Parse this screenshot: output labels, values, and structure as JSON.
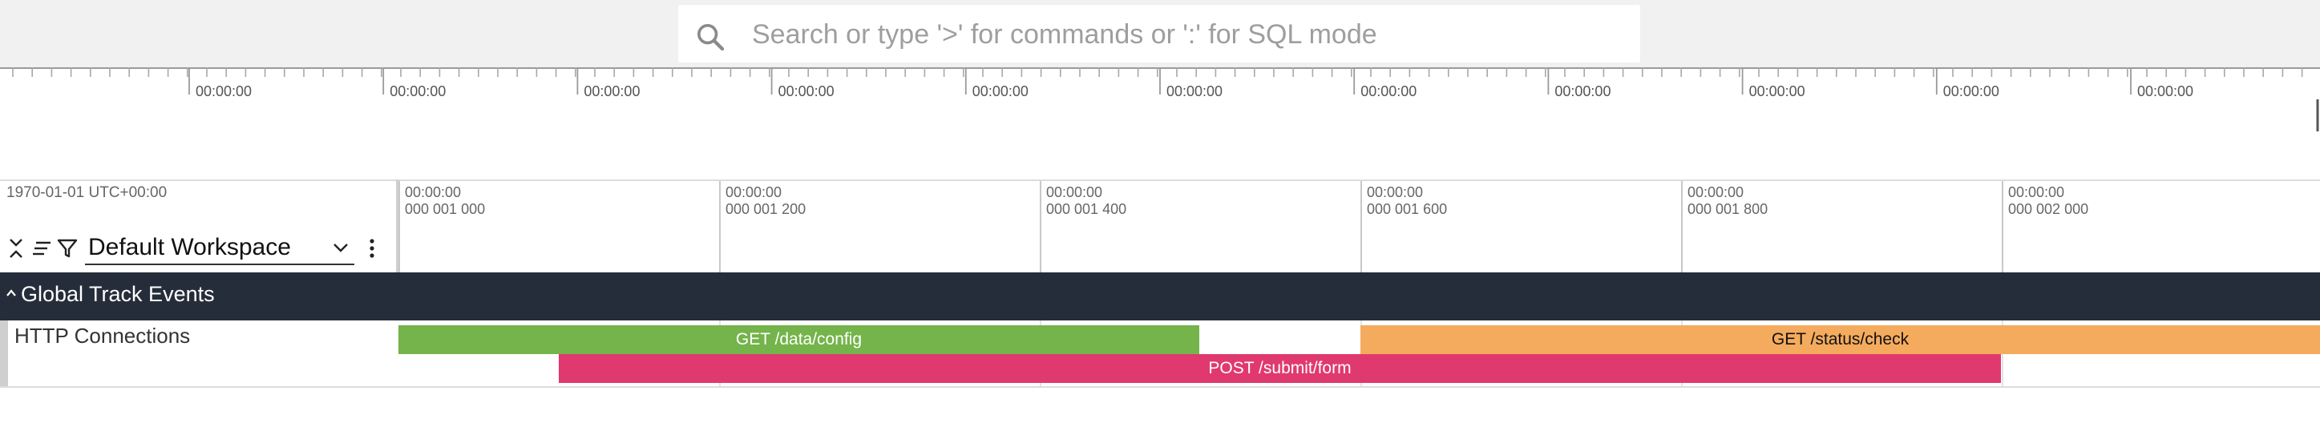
{
  "search": {
    "placeholder": "Search or type '>' for commands or ':' for SQL mode",
    "icon": "search-icon"
  },
  "overview": {
    "labels": [
      "00:00:00",
      "00:00:00",
      "00:00:00",
      "00:00:00",
      "00:00:00",
      "00:00:00",
      "00:00:00",
      "00:00:00",
      "00:00:00",
      "00:00:00",
      "00:00:00"
    ]
  },
  "timeline": {
    "date_label": "1970-01-01 UTC+00:00",
    "ticks": [
      {
        "time": "00:00:00",
        "sub": "000 001 000"
      },
      {
        "time": "00:00:00",
        "sub": "000 001 200"
      },
      {
        "time": "00:00:00",
        "sub": "000 001 400"
      },
      {
        "time": "00:00:00",
        "sub": "000 001 600"
      },
      {
        "time": "00:00:00",
        "sub": "000 001 800"
      },
      {
        "time": "00:00:00",
        "sub": "000 002 000"
      }
    ]
  },
  "controls": {
    "collapse_icon": "collapse-all-icon",
    "sort_icon": "sort-icon",
    "filter_icon": "filter-icon",
    "workspace_label": "Default Workspace",
    "dropdown_icon": "chevron-down-icon",
    "menu_icon": "kebab-menu-icon"
  },
  "group": {
    "title": "Global Track Events",
    "chevron_icon": "chevron-up-icon"
  },
  "track": {
    "name": "HTTP Connections",
    "slices": [
      {
        "name": "GET /data/config",
        "color": "#74b44a",
        "text_color": "#ffffff"
      },
      {
        "name": "GET /status/check",
        "color": "#f5ab5e",
        "text_color": "#111111"
      },
      {
        "name": "POST /submit/form",
        "color": "#e0396f",
        "text_color": "#ffffff"
      }
    ]
  }
}
